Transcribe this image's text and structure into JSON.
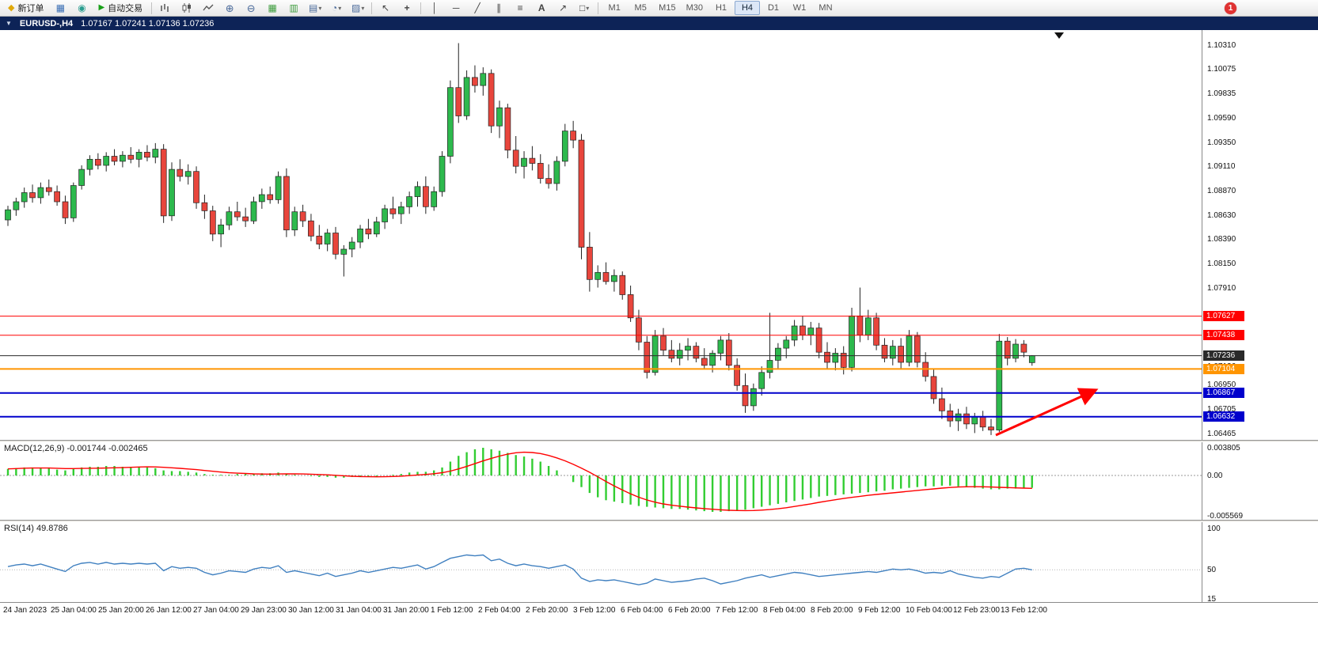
{
  "toolbar": {
    "new_order_label": "新订单",
    "autotrade_label": "自动交易",
    "timeframes": [
      "M1",
      "M5",
      "M15",
      "M30",
      "H1",
      "H4",
      "D1",
      "W1",
      "MN"
    ],
    "active_timeframe": "H4",
    "notification_badge": "1"
  },
  "chart_header": {
    "symbol": "EURUSD-,H4",
    "ohlc": "1.07167 1.07241 1.07136 1.07236"
  },
  "price_axis": {
    "ticks": [
      1.1031,
      1.10075,
      1.09835,
      1.0959,
      1.0935,
      1.0911,
      1.0887,
      1.0863,
      1.0839,
      1.0815,
      1.0791,
      1.0695,
      1.06705,
      1.06465
    ]
  },
  "levels": [
    {
      "label": "1.07627",
      "price": 1.07627,
      "color": "#FF0000",
      "thickness": 1,
      "style": "box"
    },
    {
      "label": "1.07438",
      "price": 1.07438,
      "color": "#FF0000",
      "thickness": 1,
      "style": "box"
    },
    {
      "label": "1.07236",
      "price": 1.07236,
      "color": "#2a2a2a",
      "thickness": 1,
      "style": "box"
    },
    {
      "label": "1.07136",
      "price": 1.07136,
      "style": "plain"
    },
    {
      "label": "1.07104",
      "price": 1.07104,
      "color": "#FF9500",
      "thickness": 2,
      "style": "box"
    },
    {
      "label": "1.06867",
      "price": 1.06867,
      "color": "#0000CC",
      "thickness": 2,
      "style": "box"
    },
    {
      "label": "1.06632",
      "price": 1.06632,
      "color": "#0000CC",
      "thickness": 2,
      "style": "box"
    }
  ],
  "time_axis": {
    "labels": [
      "24 Jan 2023",
      "25 Jan 04:00",
      "25 Jan 20:00",
      "26 Jan 12:00",
      "27 Jan 04:00",
      "29 Jan 23:00",
      "30 Jan 12:00",
      "31 Jan 04:00",
      "31 Jan 20:00",
      "1 Feb 12:00",
      "2 Feb 04:00",
      "2 Feb 20:00",
      "3 Feb 12:00",
      "6 Feb 04:00",
      "6 Feb 20:00",
      "7 Feb 12:00",
      "8 Feb 04:00",
      "8 Feb 20:00",
      "9 Feb 12:00",
      "10 Feb 04:00",
      "12 Feb 23:00",
      "13 Feb 12:00"
    ]
  },
  "macd": {
    "label": "MACD(12,26,9)",
    "values_text": "-0.001744 -0.002465",
    "axis_values": [
      0.003805,
      0,
      -0.005569
    ],
    "axis_labels": [
      "0.003805",
      "0.00",
      "-0.005569"
    ]
  },
  "rsi": {
    "label": "RSI(14)",
    "value_text": "49.8786",
    "axis_values": [
      100,
      50,
      15
    ],
    "axis_labels": [
      "100",
      "50",
      "15"
    ]
  },
  "annotations": [
    {
      "type": "arrow",
      "color": "#FF0000",
      "description": "red up-right arrow near lows"
    }
  ],
  "chart_data": [
    {
      "type": "candlestick",
      "title": "EURUSD-,H4",
      "last_ohlc": {
        "open": 1.07167,
        "high": 1.07241,
        "low": 1.07136,
        "close": 1.07236
      },
      "up_color": "#2DB94D",
      "down_color": "#E8453C",
      "ylim": [
        1.06403,
        1.10459
      ],
      "candles": [
        [
          1.0858,
          1.0872,
          1.0852,
          1.0868
        ],
        [
          1.0868,
          1.088,
          1.0862,
          1.0876
        ],
        [
          1.0876,
          1.089,
          1.087,
          1.0885
        ],
        [
          1.0885,
          1.0893,
          1.0875,
          1.088
        ],
        [
          1.088,
          1.0895,
          1.0874,
          1.089
        ],
        [
          1.089,
          1.0898,
          1.0882,
          1.0886
        ],
        [
          1.0886,
          1.0892,
          1.0872,
          1.0876
        ],
        [
          1.0876,
          1.0882,
          1.0854,
          1.086
        ],
        [
          1.086,
          1.0895,
          1.0856,
          1.0892
        ],
        [
          1.0892,
          1.0912,
          1.0888,
          1.0908
        ],
        [
          1.0908,
          1.0922,
          1.0902,
          1.0918
        ],
        [
          1.0918,
          1.0924,
          1.0908,
          1.0912
        ],
        [
          1.0912,
          1.0925,
          1.0906,
          1.0921
        ],
        [
          1.0921,
          1.0928,
          1.0912,
          1.0916
        ],
        [
          1.0916,
          1.0926,
          1.091,
          1.0922
        ],
        [
          1.0922,
          1.093,
          1.0914,
          1.0918
        ],
        [
          1.0918,
          1.0928,
          1.091,
          1.0925
        ],
        [
          1.0925,
          1.0932,
          1.0916,
          1.092
        ],
        [
          1.092,
          1.0934,
          1.0914,
          1.0928
        ],
        [
          1.0928,
          1.0933,
          1.0855,
          1.0862
        ],
        [
          1.0862,
          1.0915,
          1.0857,
          1.0908
        ],
        [
          1.0908,
          1.0918,
          1.0896,
          1.0901
        ],
        [
          1.0901,
          1.0913,
          1.0893,
          1.0906
        ],
        [
          1.0906,
          1.0911,
          1.0869,
          1.0875
        ],
        [
          1.0875,
          1.0883,
          1.0859,
          1.0867
        ],
        [
          1.0867,
          1.0872,
          1.0837,
          1.0844
        ],
        [
          1.0844,
          1.0859,
          1.0831,
          1.0853
        ],
        [
          1.0853,
          1.0871,
          1.0848,
          1.0866
        ],
        [
          1.0866,
          1.0876,
          1.0857,
          1.0861
        ],
        [
          1.0861,
          1.087,
          1.0851,
          1.0857
        ],
        [
          1.0857,
          1.0881,
          1.0854,
          1.0876
        ],
        [
          1.0876,
          1.0889,
          1.0869,
          1.0883
        ],
        [
          1.0883,
          1.0891,
          1.0874,
          1.0878
        ],
        [
          1.0878,
          1.0906,
          1.0874,
          1.0901
        ],
        [
          1.0901,
          1.0909,
          1.0841,
          1.0848
        ],
        [
          1.0848,
          1.0871,
          1.0842,
          1.0866
        ],
        [
          1.0866,
          1.0873,
          1.0851,
          1.0857
        ],
        [
          1.0857,
          1.0864,
          1.0837,
          1.0842
        ],
        [
          1.0842,
          1.0853,
          1.0829,
          1.0834
        ],
        [
          1.0834,
          1.0849,
          1.0827,
          1.0845
        ],
        [
          1.0845,
          1.0851,
          1.0819,
          1.0824
        ],
        [
          1.0824,
          1.0833,
          1.0802,
          1.0829
        ],
        [
          1.0829,
          1.0841,
          1.0821,
          1.0836
        ],
        [
          1.0836,
          1.0853,
          1.083,
          1.0849
        ],
        [
          1.0849,
          1.0859,
          1.0839,
          1.0844
        ],
        [
          1.0844,
          1.0861,
          1.0841,
          1.0856
        ],
        [
          1.0856,
          1.0873,
          1.0849,
          1.0869
        ],
        [
          1.0869,
          1.0881,
          1.0859,
          1.0864
        ],
        [
          1.0864,
          1.0876,
          1.0854,
          1.0871
        ],
        [
          1.0871,
          1.0886,
          1.0864,
          1.0881
        ],
        [
          1.0881,
          1.0896,
          1.0871,
          1.0891
        ],
        [
          1.0891,
          1.0901,
          1.0864,
          1.0871
        ],
        [
          1.0871,
          1.0891,
          1.0867,
          1.0886
        ],
        [
          1.0886,
          1.0926,
          1.0881,
          1.0921
        ],
        [
          1.0921,
          1.0996,
          1.0914,
          1.0989
        ],
        [
          1.0989,
          1.1033,
          1.0954,
          1.0961
        ],
        [
          1.0961,
          1.1006,
          1.0957,
          1.0999
        ],
        [
          1.0999,
          1.1011,
          1.0984,
          1.0991
        ],
        [
          1.0991,
          1.1009,
          1.0981,
          1.1003
        ],
        [
          1.1003,
          1.1007,
          1.0944,
          1.0951
        ],
        [
          1.0951,
          1.0976,
          1.0939,
          1.0969
        ],
        [
          1.0969,
          1.0973,
          1.0919,
          1.0927
        ],
        [
          1.0927,
          1.0941,
          1.0904,
          1.0911
        ],
        [
          1.0911,
          1.0926,
          1.0899,
          1.0919
        ],
        [
          1.0919,
          1.0931,
          1.0907,
          1.0914
        ],
        [
          1.0914,
          1.0923,
          1.0894,
          1.0899
        ],
        [
          1.0899,
          1.0913,
          1.0889,
          1.0894
        ],
        [
          1.0894,
          1.0921,
          1.0887,
          1.0916
        ],
        [
          1.0916,
          1.0953,
          1.0911,
          1.0946
        ],
        [
          1.0946,
          1.0956,
          1.0929,
          1.0937
        ],
        [
          1.0937,
          1.0943,
          1.0819,
          1.0831
        ],
        [
          1.0831,
          1.0846,
          1.0787,
          1.0799
        ],
        [
          1.0799,
          1.0813,
          1.0791,
          1.0806
        ],
        [
          1.0806,
          1.0816,
          1.0794,
          1.0797
        ],
        [
          1.0797,
          1.0809,
          1.0787,
          1.0803
        ],
        [
          1.0803,
          1.0807,
          1.0779,
          1.0784
        ],
        [
          1.0784,
          1.0793,
          1.0757,
          1.0761
        ],
        [
          1.0761,
          1.0769,
          1.0729,
          1.0737
        ],
        [
          1.0737,
          1.0743,
          1.0701,
          1.0707
        ],
        [
          1.0707,
          1.0749,
          1.0704,
          1.0743
        ],
        [
          1.0743,
          1.0751,
          1.0724,
          1.0729
        ],
        [
          1.0729,
          1.0739,
          1.0717,
          1.0721
        ],
        [
          1.0721,
          1.0736,
          1.0714,
          1.0729
        ],
        [
          1.0729,
          1.0741,
          1.0719,
          1.0733
        ],
        [
          1.0733,
          1.0737,
          1.0717,
          1.0721
        ],
        [
          1.0721,
          1.0731,
          1.0711,
          1.0714
        ],
        [
          1.0714,
          1.0729,
          1.0707,
          1.0726
        ],
        [
          1.0726,
          1.0743,
          1.0719,
          1.0739
        ],
        [
          1.0739,
          1.0746,
          1.0709,
          1.0714
        ],
        [
          1.0714,
          1.0721,
          1.0689,
          1.0694
        ],
        [
          1.0694,
          1.0706,
          1.0667,
          1.0674
        ],
        [
          1.0674,
          1.0696,
          1.0669,
          1.0691
        ],
        [
          1.0691,
          1.0713,
          1.0684,
          1.0707
        ],
        [
          1.0707,
          1.0766,
          1.0701,
          1.0719
        ],
        [
          1.0719,
          1.0736,
          1.0711,
          1.0731
        ],
        [
          1.0731,
          1.0743,
          1.0721,
          1.0739
        ],
        [
          1.0739,
          1.0759,
          1.0733,
          1.0753
        ],
        [
          1.0753,
          1.0763,
          1.0739,
          1.0744
        ],
        [
          1.0744,
          1.0757,
          1.0734,
          1.0751
        ],
        [
          1.0751,
          1.0756,
          1.0721,
          1.0727
        ],
        [
          1.0727,
          1.0737,
          1.0711,
          1.0717
        ],
        [
          1.0717,
          1.0731,
          1.0709,
          1.0726
        ],
        [
          1.0726,
          1.0733,
          1.0705,
          1.0712
        ],
        [
          1.0712,
          1.0771,
          1.0708,
          1.0763
        ],
        [
          1.0763,
          1.0791,
          1.0737,
          1.0744
        ],
        [
          1.0744,
          1.0769,
          1.0739,
          1.0761
        ],
        [
          1.0761,
          1.0766,
          1.0729,
          1.0734
        ],
        [
          1.0734,
          1.0741,
          1.0717,
          1.0721
        ],
        [
          1.0721,
          1.0739,
          1.0714,
          1.0733
        ],
        [
          1.0733,
          1.0741,
          1.0711,
          1.0717
        ],
        [
          1.0717,
          1.0749,
          1.0713,
          1.0743
        ],
        [
          1.0743,
          1.0747,
          1.0712,
          1.0717
        ],
        [
          1.0717,
          1.0727,
          1.0698,
          1.0703
        ],
        [
          1.0703,
          1.0711,
          1.0676,
          1.0681
        ],
        [
          1.0681,
          1.0692,
          1.0661,
          1.0669
        ],
        [
          1.0669,
          1.0676,
          1.0653,
          1.0659
        ],
        [
          1.0659,
          1.0671,
          1.0649,
          1.0666
        ],
        [
          1.0666,
          1.0673,
          1.0651,
          1.0656
        ],
        [
          1.0656,
          1.0667,
          1.0647,
          1.0663
        ],
        [
          1.0663,
          1.0669,
          1.0649,
          1.0653
        ],
        [
          1.0653,
          1.0661,
          1.0645,
          1.065
        ],
        [
          1.065,
          1.0745,
          1.0648,
          1.0738
        ],
        [
          1.0738,
          1.0742,
          1.0714,
          1.0721
        ],
        [
          1.0721,
          1.074,
          1.0717,
          1.0735
        ],
        [
          1.0735,
          1.0739,
          1.0722,
          1.0727
        ],
        [
          1.07167,
          1.07241,
          1.07136,
          1.07236
        ]
      ]
    },
    {
      "type": "bar",
      "name": "MACD(12,26,9) histogram",
      "color": "#32CD32",
      "signal_color": "#FF0000",
      "ylim": [
        -0.005569,
        0.003805
      ],
      "values": [
        0.0009,
        0.001,
        0.0011,
        0.0011,
        0.001,
        0.001,
        0.0008,
        0.0007,
        0.0009,
        0.0011,
        0.0012,
        0.0012,
        0.0013,
        0.0013,
        0.0012,
        0.0012,
        0.0011,
        0.0011,
        0.001,
        0.0007,
        0.0006,
        0.0006,
        0.0005,
        0.0004,
        0.0002,
        0.0001,
        0.0001,
        0.0001,
        0.0002,
        0.0002,
        0.0002,
        0.0003,
        0.0003,
        0.0004,
        0.0002,
        0.0001,
        0.0,
        -0.0001,
        -0.0002,
        -0.0002,
        -0.0003,
        -0.0003,
        -0.0002,
        -0.0002,
        -0.0001,
        -0.0001,
        0.0,
        0.0001,
        0.0002,
        0.0004,
        0.0005,
        0.0005,
        0.0007,
        0.0011,
        0.0019,
        0.0027,
        0.0032,
        0.0036,
        0.0038,
        0.0036,
        0.0034,
        0.0031,
        0.0028,
        0.0026,
        0.0023,
        0.0019,
        0.0013,
        0.0007,
        0.0,
        -0.0009,
        -0.0016,
        -0.0024,
        -0.003,
        -0.0034,
        -0.0036,
        -0.0038,
        -0.004,
        -0.0042,
        -0.0043,
        -0.0044,
        -0.0045,
        -0.0046,
        -0.0046,
        -0.0047,
        -0.0048,
        -0.0049,
        -0.005,
        -0.005,
        -0.0049,
        -0.0048,
        -0.0047,
        -0.0045,
        -0.0043,
        -0.0041,
        -0.0039,
        -0.0037,
        -0.0035,
        -0.0033,
        -0.0031,
        -0.0029,
        -0.0028,
        -0.0027,
        -0.0026,
        -0.0025,
        -0.0024,
        -0.0023,
        -0.0022,
        -0.0021,
        -0.0019,
        -0.0018,
        -0.0017,
        -0.0016,
        -0.0015,
        -0.0015,
        -0.0014,
        -0.0014,
        -0.0015,
        -0.0016,
        -0.0017,
        -0.0018,
        -0.0019,
        -0.0019,
        -0.0018,
        -0.0018,
        -0.0017,
        -0.0017
      ]
    },
    {
      "type": "line",
      "name": "RSI(14)",
      "color": "#4080C0",
      "ylim": [
        15,
        100
      ],
      "values": [
        54,
        56,
        57,
        55,
        57,
        54,
        51,
        48,
        55,
        58,
        59,
        57,
        59,
        57,
        58,
        57,
        58,
        57,
        58,
        49,
        54,
        52,
        53,
        52,
        47,
        44,
        46,
        49,
        48,
        47,
        51,
        53,
        52,
        55,
        47,
        49,
        47,
        45,
        43,
        46,
        42,
        44,
        46,
        49,
        47,
        49,
        51,
        53,
        52,
        54,
        56,
        51,
        54,
        59,
        64,
        66,
        68,
        67,
        68,
        61,
        63,
        58,
        55,
        57,
        55,
        54,
        52,
        54,
        56,
        51,
        40,
        36,
        38,
        37,
        38,
        36,
        34,
        32,
        34,
        39,
        37,
        35,
        36,
        37,
        39,
        40,
        37,
        33,
        35,
        37,
        40,
        42,
        44,
        41,
        43,
        45,
        47,
        46,
        44,
        42,
        43,
        44,
        45,
        46,
        47,
        48,
        47,
        49,
        51,
        50,
        51,
        49,
        46,
        47,
        46,
        49,
        45,
        43,
        41,
        40,
        42,
        41,
        46,
        51,
        52,
        50
      ]
    }
  ]
}
